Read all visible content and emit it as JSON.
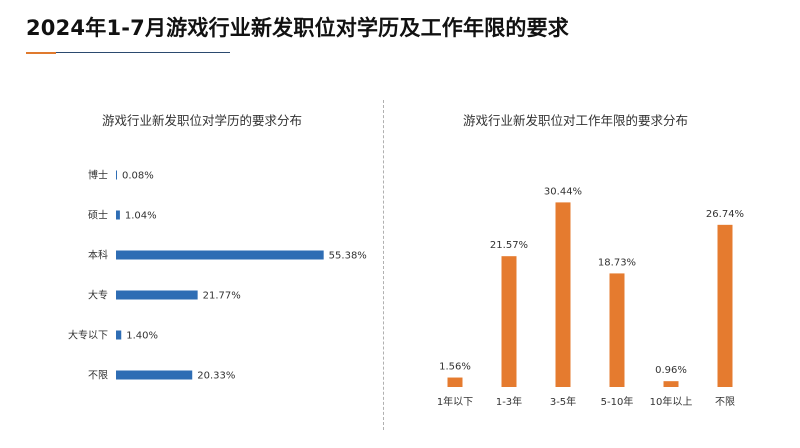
{
  "page": {
    "title": "2024年1-7月游戏行业新发职位对学历及工作年限的要求"
  },
  "colors": {
    "education_bar": "#2e6db4",
    "experience_bar": "#e57b2f",
    "title_underline": "#2b4a6f",
    "divider": "#b0b0b0"
  },
  "chart_data": [
    {
      "type": "bar",
      "orientation": "horizontal",
      "title": "游戏行业新发职位对学历的要求分布",
      "categories": [
        "博士",
        "硕士",
        "本科",
        "大专",
        "大专以下",
        "不限"
      ],
      "values": [
        0.08,
        1.04,
        55.38,
        21.77,
        1.4,
        20.33
      ],
      "value_labels": [
        "0.08%",
        "1.04%",
        "55.38%",
        "21.77%",
        "1.40%",
        "20.33%"
      ],
      "unit": "%",
      "xlim": [
        0,
        56
      ],
      "grid": false,
      "legend": "none"
    },
    {
      "type": "bar",
      "orientation": "vertical",
      "title": "游戏行业新发职位对工作年限的要求分布",
      "categories": [
        "1年以下",
        "1-3年",
        "3-5年",
        "5-10年",
        "10年以上",
        "不限"
      ],
      "values": [
        1.56,
        21.57,
        30.44,
        18.73,
        0.96,
        26.74
      ],
      "value_labels": [
        "1.56%",
        "21.57%",
        "30.44%",
        "18.73%",
        "0.96%",
        "26.74%"
      ],
      "unit": "%",
      "ylim": [
        0,
        31
      ],
      "grid": false,
      "legend": "none"
    }
  ]
}
